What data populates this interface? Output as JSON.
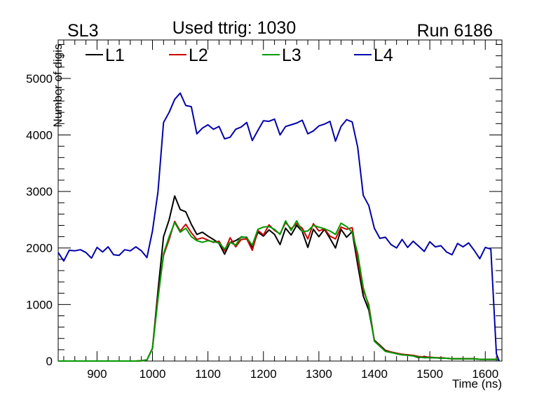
{
  "chart_data": {
    "type": "line",
    "title": "Used ttrig: 1030",
    "left_label": "SL3",
    "right_label": "Run 6186",
    "xlabel": "Time (ns)",
    "ylabel": "Number of digis",
    "xlim": [
      830,
      1630
    ],
    "ylim": [
      0,
      5680
    ],
    "x_ticks": [
      900,
      1000,
      1100,
      1200,
      1300,
      1400,
      1500,
      1600
    ],
    "y_ticks": [
      0,
      1000,
      2000,
      3000,
      4000,
      5000
    ],
    "x_tick_labels": [
      "900",
      "1000",
      "1100",
      "1200",
      "1300",
      "1400",
      "1500",
      "1600"
    ],
    "y_tick_labels": [
      "0",
      "1000",
      "2000",
      "3000",
      "4000",
      "5000"
    ],
    "grid": false,
    "legend_position": "top",
    "x": [
      830,
      840,
      850,
      860,
      870,
      880,
      890,
      900,
      910,
      920,
      930,
      940,
      950,
      960,
      970,
      980,
      990,
      1000,
      1010,
      1020,
      1030,
      1040,
      1050,
      1060,
      1070,
      1080,
      1090,
      1100,
      1110,
      1120,
      1130,
      1140,
      1150,
      1160,
      1170,
      1180,
      1190,
      1200,
      1210,
      1220,
      1230,
      1240,
      1250,
      1260,
      1270,
      1280,
      1290,
      1300,
      1310,
      1320,
      1330,
      1340,
      1350,
      1360,
      1370,
      1380,
      1390,
      1400,
      1410,
      1420,
      1430,
      1440,
      1450,
      1460,
      1470,
      1480,
      1490,
      1500,
      1510,
      1520,
      1530,
      1540,
      1550,
      1560,
      1570,
      1580,
      1590,
      1600,
      1610,
      1620,
      1625
    ],
    "series": [
      {
        "name": "L1",
        "color": "#000000",
        "values": [
          0,
          0,
          0,
          0,
          0,
          0,
          0,
          0,
          0,
          0,
          0,
          0,
          0,
          0,
          0,
          5,
          20,
          220,
          1250,
          2200,
          2500,
          2920,
          2680,
          2640,
          2420,
          2240,
          2280,
          2210,
          2150,
          2080,
          1890,
          2100,
          2130,
          2190,
          2190,
          2000,
          2280,
          2210,
          2320,
          2240,
          2060,
          2350,
          2230,
          2400,
          2290,
          2010,
          2330,
          2200,
          2330,
          2170,
          2000,
          2330,
          2190,
          2290,
          1700,
          1150,
          900,
          370,
          280,
          190,
          160,
          130,
          110,
          110,
          90,
          60,
          80,
          60,
          60,
          50,
          50,
          40,
          40,
          40,
          40,
          40,
          30,
          30,
          30,
          30,
          20
        ]
      },
      {
        "name": "L2",
        "color": "#cc0000",
        "values": [
          0,
          0,
          0,
          0,
          0,
          0,
          0,
          0,
          0,
          0,
          0,
          0,
          0,
          0,
          0,
          5,
          20,
          230,
          1150,
          1870,
          2150,
          2470,
          2300,
          2420,
          2270,
          2150,
          2180,
          2140,
          2100,
          2120,
          1950,
          2180,
          2020,
          2150,
          2160,
          1960,
          2310,
          2230,
          2410,
          2310,
          2250,
          2450,
          2340,
          2430,
          2350,
          2160,
          2430,
          2300,
          2340,
          2210,
          2160,
          2370,
          2330,
          2360,
          1800,
          1250,
          1000,
          360,
          270,
          180,
          160,
          140,
          120,
          110,
          100,
          80,
          70,
          70,
          60,
          60,
          50,
          40,
          40,
          40,
          40,
          40,
          30,
          30,
          30,
          30,
          20
        ]
      },
      {
        "name": "L3",
        "color": "#009900",
        "values": [
          0,
          0,
          0,
          0,
          0,
          0,
          0,
          0,
          0,
          0,
          0,
          0,
          0,
          0,
          0,
          5,
          20,
          220,
          1100,
          1900,
          2200,
          2450,
          2280,
          2350,
          2200,
          2130,
          2100,
          2130,
          2110,
          2090,
          1980,
          2100,
          2050,
          2200,
          2180,
          2050,
          2330,
          2370,
          2380,
          2330,
          2240,
          2480,
          2310,
          2480,
          2290,
          2300,
          2400,
          2370,
          2340,
          2300,
          2240,
          2440,
          2380,
          2280,
          1900,
          1300,
          960,
          350,
          260,
          170,
          150,
          130,
          110,
          100,
          90,
          70,
          60,
          60,
          60,
          50,
          50,
          40,
          40,
          40,
          40,
          40,
          30,
          30,
          30,
          30,
          20
        ]
      },
      {
        "name": "L4",
        "color": "#0000aa",
        "values": [
          1920,
          1770,
          1960,
          1950,
          1970,
          1920,
          1820,
          2010,
          1930,
          2020,
          1880,
          1870,
          1970,
          1950,
          2020,
          1950,
          1830,
          2300,
          3000,
          4220,
          4400,
          4630,
          4740,
          4520,
          4500,
          4020,
          4120,
          4180,
          4100,
          4150,
          3930,
          3960,
          4100,
          4140,
          4220,
          3900,
          4080,
          4250,
          4240,
          4280,
          4000,
          4150,
          4180,
          4210,
          4260,
          4020,
          4070,
          4160,
          4190,
          4240,
          3890,
          4150,
          4270,
          4230,
          3780,
          2930,
          2750,
          2350,
          2170,
          2190,
          2060,
          2000,
          2150,
          2010,
          2120,
          2030,
          1940,
          2110,
          2020,
          2040,
          1930,
          1880,
          2080,
          2020,
          2090,
          1960,
          1810,
          2010,
          1980,
          130,
          0
        ]
      }
    ]
  }
}
